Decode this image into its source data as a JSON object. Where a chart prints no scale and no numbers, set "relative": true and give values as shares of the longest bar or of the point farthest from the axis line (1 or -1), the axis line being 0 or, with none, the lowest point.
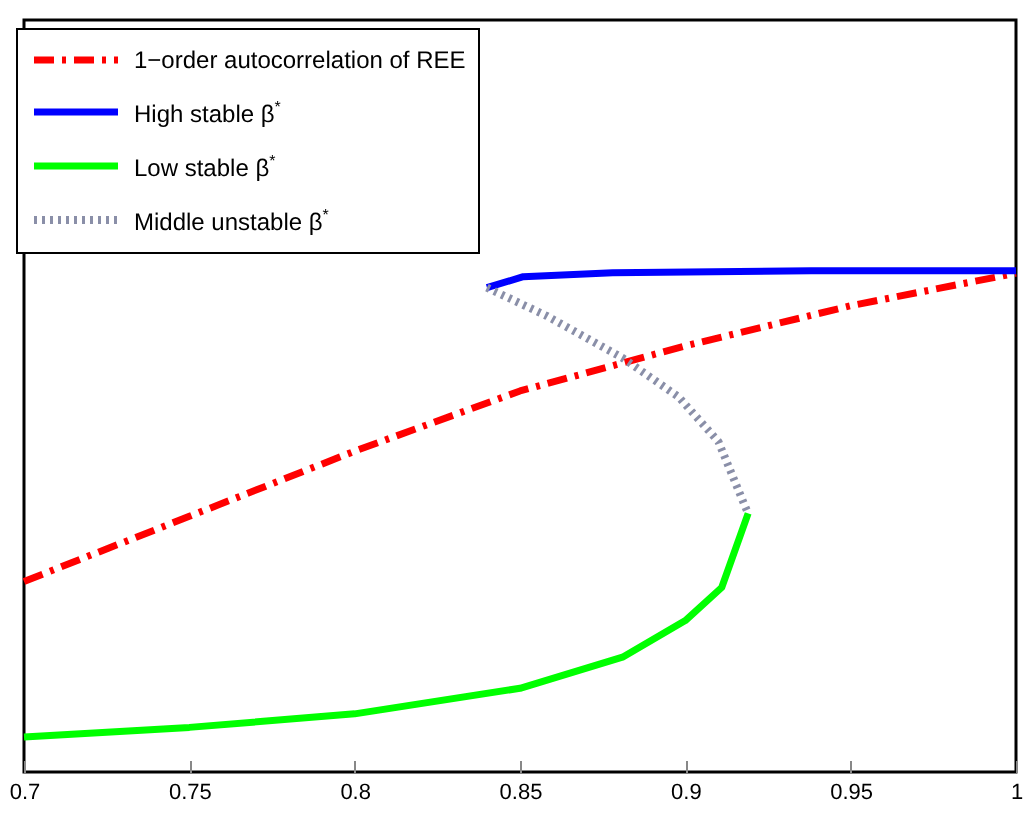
{
  "chart_data": {
    "type": "line",
    "relative": true,
    "xlim": [
      0.7,
      1
    ],
    "xticks": [
      0.7,
      0.75,
      0.8,
      0.85,
      0.9,
      0.95,
      1
    ],
    "legend": "top left",
    "grid": false,
    "series": [
      {
        "name": "1−order autocorrelation of REE",
        "color": "#ff0000",
        "line_style": "dashed",
        "x": [
          0.7,
          0.75,
          0.8,
          0.85,
          0.9,
          0.95,
          1
        ],
        "values": [
          0.38,
          0.51,
          0.64,
          0.76,
          0.85,
          0.93,
          0.995
        ]
      },
      {
        "name": "High stable β$^{*}$",
        "color": "#0000ff",
        "line_style": "solid",
        "x": [
          0.84,
          0.851,
          0.878,
          0.938,
          1
        ],
        "values": [
          0.966,
          0.988,
          0.996,
          1,
          1
        ]
      },
      {
        "name": "Low stable β$^{*}$",
        "color": "#00ff00",
        "line_style": "solid",
        "x": [
          0.7,
          0.75,
          0.8,
          0.85,
          0.881,
          0.9,
          0.911,
          0.919
        ],
        "values": [
          0.07,
          0.089,
          0.116,
          0.167,
          0.229,
          0.302,
          0.368,
          0.516
        ]
      },
      {
        "name": "Middle unstable β$^{*}$",
        "color": "#8a8fa8",
        "line_style": "dotted",
        "x": [
          0.84,
          0.858,
          0.881,
          0.898,
          0.91,
          0.918,
          0.919
        ],
        "values": [
          0.966,
          0.91,
          0.826,
          0.748,
          0.659,
          0.531,
          0.516
        ]
      }
    ]
  }
}
